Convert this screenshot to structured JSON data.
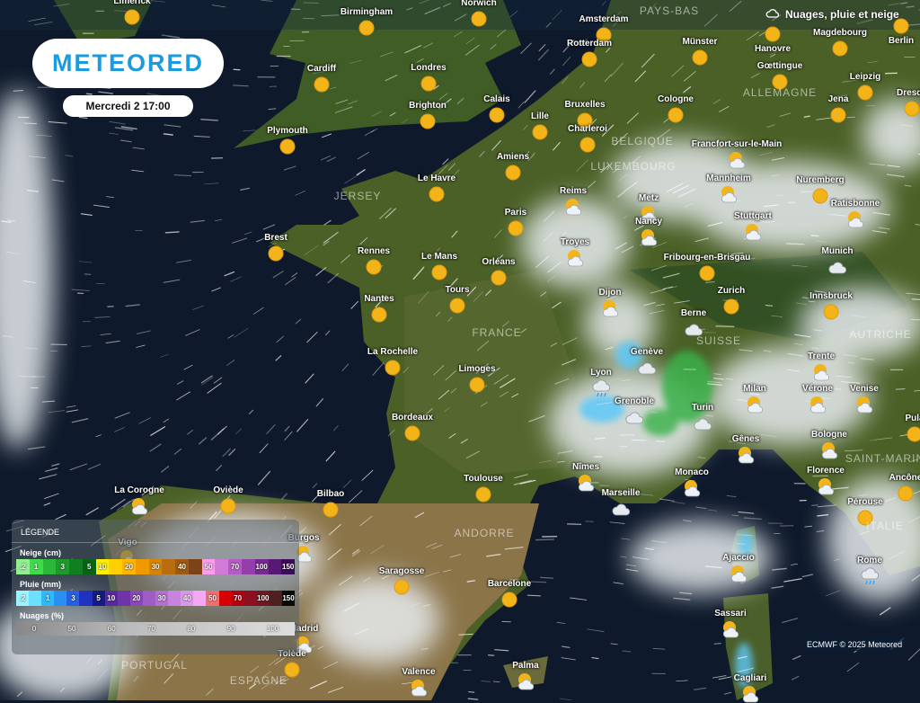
{
  "header": {
    "date": "Mercredi 2 17:00",
    "layer_title": "Nuages, pluie et neige",
    "layer_icon": "cloud-rain-icon"
  },
  "logo": {
    "text": "METEORED"
  },
  "credit": "ECMWF © 2025 Meteored",
  "colors": {
    "ocean": "#0e1a2c",
    "land": "#3d5a22",
    "accent": "#1a9be0",
    "sun": "#f2b418"
  },
  "countries": [
    "PAYS-BAS",
    "BELGIQUE",
    "LUXEMBOURG",
    "ALLEMAGNE",
    "JERSEY",
    "FRANCE",
    "SUISSE",
    "AUTRICHE",
    "ANDORRE",
    "PORTUGAL",
    "ESPAGNE",
    "ITALIE",
    "SAINT-MARIN"
  ],
  "cities": [
    {
      "name": "Limerick",
      "icon": "sun"
    },
    {
      "name": "Birmingham",
      "icon": "sun"
    },
    {
      "name": "Norwich",
      "icon": "sun"
    },
    {
      "name": "Amsterdam",
      "icon": "sun"
    },
    {
      "name": "Hanovre",
      "icon": "sun"
    },
    {
      "name": "Berlin",
      "icon": "sun"
    },
    {
      "name": "Rotterdam",
      "icon": "sun"
    },
    {
      "name": "Münster",
      "icon": "sun"
    },
    {
      "name": "Magdebourg",
      "icon": "sun"
    },
    {
      "name": "Cardiff",
      "icon": "sun"
    },
    {
      "name": "Londres",
      "icon": "sun"
    },
    {
      "name": "Gœttingue",
      "icon": "sun"
    },
    {
      "name": "Leipzig",
      "icon": "sun"
    },
    {
      "name": "Dresde",
      "icon": "sun"
    },
    {
      "name": "Calais",
      "icon": "sun"
    },
    {
      "name": "Brighton",
      "icon": "sun"
    },
    {
      "name": "Bruxelles",
      "icon": "sun"
    },
    {
      "name": "Cologne",
      "icon": "sun"
    },
    {
      "name": "Jena",
      "icon": "sun"
    },
    {
      "name": "Plymouth",
      "icon": "sun"
    },
    {
      "name": "Lille",
      "icon": "sun"
    },
    {
      "name": "Charleroi",
      "icon": "sun"
    },
    {
      "name": "Francfort-sur-le-Main",
      "icon": "sun-cloud"
    },
    {
      "name": "Amiens",
      "icon": "sun"
    },
    {
      "name": "Le Havre",
      "icon": "sun"
    },
    {
      "name": "Reims",
      "icon": "sun-cloud"
    },
    {
      "name": "Metz",
      "icon": "sun-cloud"
    },
    {
      "name": "Mannheim",
      "icon": "sun-cloud"
    },
    {
      "name": "Nuremberg",
      "icon": "sun"
    },
    {
      "name": "Ratisbonne",
      "icon": "sun-cloud"
    },
    {
      "name": "Paris",
      "icon": "sun"
    },
    {
      "name": "Nancy",
      "icon": "sun-cloud"
    },
    {
      "name": "Stuttgart",
      "icon": "sun-cloud"
    },
    {
      "name": "Brest",
      "icon": "sun"
    },
    {
      "name": "Rennes",
      "icon": "sun"
    },
    {
      "name": "Le Mans",
      "icon": "sun"
    },
    {
      "name": "Orléans",
      "icon": "sun"
    },
    {
      "name": "Troyes",
      "icon": "sun-cloud"
    },
    {
      "name": "Fribourg-en-Brisgau",
      "icon": "sun"
    },
    {
      "name": "Munich",
      "icon": "cloud"
    },
    {
      "name": "Tours",
      "icon": "sun"
    },
    {
      "name": "Dijon",
      "icon": "sun-cloud"
    },
    {
      "name": "Zurich",
      "icon": "sun"
    },
    {
      "name": "Innsbruck",
      "icon": "sun"
    },
    {
      "name": "Nantes",
      "icon": "sun"
    },
    {
      "name": "Berne",
      "icon": "cloud"
    },
    {
      "name": "La Rochelle",
      "icon": "sun"
    },
    {
      "name": "Genève",
      "icon": "cloud"
    },
    {
      "name": "Limoges",
      "icon": "sun"
    },
    {
      "name": "Lyon",
      "icon": "rain"
    },
    {
      "name": "Trente",
      "icon": "sun-cloud"
    },
    {
      "name": "Milan",
      "icon": "sun-cloud"
    },
    {
      "name": "Vérone",
      "icon": "sun-cloud"
    },
    {
      "name": "Venise",
      "icon": "sun-cloud"
    },
    {
      "name": "Grenoble",
      "icon": "cloud"
    },
    {
      "name": "Turin",
      "icon": "cloud"
    },
    {
      "name": "Bordeaux",
      "icon": "sun"
    },
    {
      "name": "Bologne",
      "icon": "sun-cloud"
    },
    {
      "name": "Gênes",
      "icon": "sun-cloud"
    },
    {
      "name": "Florence",
      "icon": "sun-cloud"
    },
    {
      "name": "Ancône",
      "icon": "sun"
    },
    {
      "name": "Nîmes",
      "icon": "sun-cloud"
    },
    {
      "name": "Toulouse",
      "icon": "sun"
    },
    {
      "name": "Monaco",
      "icon": "sun-cloud"
    },
    {
      "name": "Marseille",
      "icon": "cloud"
    },
    {
      "name": "La Corogne",
      "icon": "sun-cloud"
    },
    {
      "name": "Oviède",
      "icon": "sun"
    },
    {
      "name": "Bilbao",
      "icon": "sun"
    },
    {
      "name": "Pérouse",
      "icon": "sun"
    },
    {
      "name": "Vigo",
      "icon": "sun-cloud"
    },
    {
      "name": "Burgos",
      "icon": "sun-cloud"
    },
    {
      "name": "Saragosse",
      "icon": "sun"
    },
    {
      "name": "Barcelone",
      "icon": "sun"
    },
    {
      "name": "Ajaccio",
      "icon": "sun-cloud"
    },
    {
      "name": "Rome",
      "icon": "rain"
    },
    {
      "name": "Madrid",
      "icon": "sun-cloud"
    },
    {
      "name": "Sassari",
      "icon": "sun-cloud"
    },
    {
      "name": "Tolède",
      "icon": "sun"
    },
    {
      "name": "Valence",
      "icon": "sun-cloud"
    },
    {
      "name": "Palma",
      "icon": "sun-cloud"
    },
    {
      "name": "Cagliari",
      "icon": "sun-cloud"
    },
    {
      "name": "Pula",
      "icon": "sun"
    }
  ],
  "legend": {
    "title": "LÉGENDE",
    "snow": {
      "label": "Neige (cm)",
      "cells": [
        {
          "t": ".2",
          "c": "#8ef08e"
        },
        {
          "t": "1",
          "c": "#3fdc4a"
        },
        {
          "t": "",
          "c": "#2bb83a"
        },
        {
          "t": "3",
          "c": "#1e9a2c"
        },
        {
          "t": "",
          "c": "#127e20"
        },
        {
          "t": "5",
          "c": "#066412"
        },
        {
          "t": "10",
          "c": "#ffee00"
        },
        {
          "t": "",
          "c": "#ffd000"
        },
        {
          "t": "20",
          "c": "#ffb400"
        },
        {
          "t": "",
          "c": "#f09a00"
        },
        {
          "t": "30",
          "c": "#d88400"
        },
        {
          "t": "",
          "c": "#b86e10"
        },
        {
          "t": "40",
          "c": "#9c5a14"
        },
        {
          "t": "",
          "c": "#7a4418"
        },
        {
          "t": "50",
          "c": "#ff9cf0"
        },
        {
          "t": "",
          "c": "#d27ad8"
        },
        {
          "t": "70",
          "c": "#b35cc4"
        },
        {
          "t": "",
          "c": "#933eaa"
        },
        {
          "t": "100",
          "c": "#742a90"
        },
        {
          "t": "",
          "c": "#561a74"
        },
        {
          "t": "150",
          "c": "#3c0c5a"
        }
      ]
    },
    "rain": {
      "label": "Pluie (mm)",
      "cells": [
        {
          "t": ".2",
          "c": "#9cf4ff"
        },
        {
          "t": "",
          "c": "#6ee0ff"
        },
        {
          "t": "1",
          "c": "#30b8f8"
        },
        {
          "t": "",
          "c": "#2890f0"
        },
        {
          "t": "3",
          "c": "#2460e0"
        },
        {
          "t": "",
          "c": "#2030c0"
        },
        {
          "t": "5",
          "c": "#141a80"
        },
        {
          "t": "10",
          "c": "#5a2a9a"
        },
        {
          "t": "",
          "c": "#6e34a8"
        },
        {
          "t": "20",
          "c": "#8a48b8"
        },
        {
          "t": "",
          "c": "#a05cc4"
        },
        {
          "t": "30",
          "c": "#b470d0"
        },
        {
          "t": "",
          "c": "#c884dc"
        },
        {
          "t": "40",
          "c": "#da98e8"
        },
        {
          "t": "",
          "c": "#f4a8f4"
        },
        {
          "t": "50",
          "c": "#f07070"
        },
        {
          "t": "",
          "c": "#d80000"
        },
        {
          "t": "70",
          "c": "#b40010"
        },
        {
          "t": "",
          "c": "#8c1020"
        },
        {
          "t": "100",
          "c": "#701824"
        },
        {
          "t": "",
          "c": "#502020"
        },
        {
          "t": "150",
          "c": "#080808"
        }
      ]
    },
    "clouds": {
      "label": "Nuages (%)",
      "ticks": [
        "0",
        "50",
        "60",
        "70",
        "80",
        "90",
        "100"
      ]
    }
  }
}
